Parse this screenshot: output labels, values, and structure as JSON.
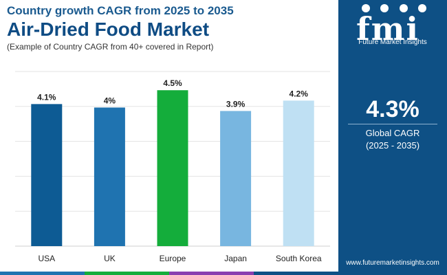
{
  "header": {
    "subtitle_top": "Country growth CAGR from 2025 to 2035",
    "title": "Air-Dried Food Market",
    "note": "(Example of Country CAGR from 40+ covered in Report)"
  },
  "chart_data": {
    "type": "bar",
    "title": "Air-Dried Food Market",
    "categories": [
      "USA",
      "UK",
      "Europe",
      "Japan",
      "South Korea"
    ],
    "values": [
      4.1,
      4.0,
      4.5,
      3.9,
      4.2
    ],
    "value_labels": [
      "4.1%",
      "4%",
      "4.5%",
      "3.9%",
      "4.2%"
    ],
    "bar_colors": [
      "#0d5b94",
      "#1f73b0",
      "#14ad3b",
      "#78b6e0",
      "#bfe0f3"
    ],
    "ylim": [
      0,
      4.5
    ],
    "grid": true,
    "xlabel": "",
    "ylabel": ""
  },
  "panel": {
    "brand_short": "fmi",
    "brand_name": "Future Market Insights",
    "cagr_value": "4.3%",
    "cagr_label": "Global CAGR",
    "cagr_period": "(2025 - 2035)",
    "website": "www.futuremarketinsights.com"
  },
  "colors": {
    "panel_bg": "#0e5085",
    "title": "#0f4c84",
    "footer": [
      "#1f73b0",
      "#14ad3b",
      "#8a3fb0",
      "#0e5085"
    ]
  }
}
